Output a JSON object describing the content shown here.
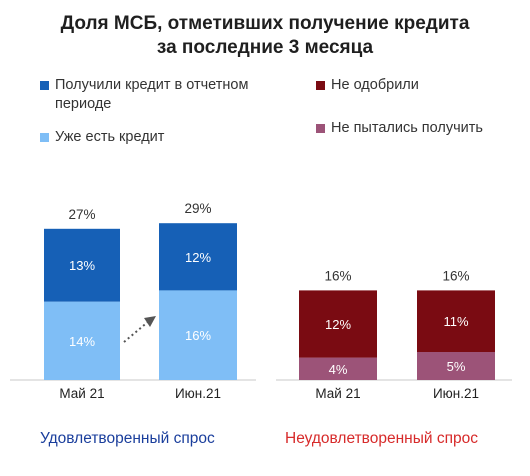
{
  "title_line1": "Доля МСБ, отметивших получение кредита",
  "title_line2": "за последние 3 месяца",
  "legend": {
    "received": {
      "label": "Получили кредит в отчетном периоде",
      "color": "#1660B6"
    },
    "has_credit": {
      "label": "Уже есть кредит",
      "color": "#7FBEF6"
    },
    "not_approved": {
      "label": "Не одобрили",
      "color": "#7A0B12"
    },
    "not_tried": {
      "label": "Не пытались получить",
      "color": "#9C5378"
    }
  },
  "sections": {
    "satisfied": {
      "label": "Удовлетворенный спрос",
      "color": "#1A3E9C"
    },
    "unsatisfied": {
      "label": "Неудовлетворенный спрос",
      "color": "#D72A2A"
    }
  },
  "chart_data": [
    {
      "type": "bar",
      "stacked": true,
      "categories": [
        "Май 21",
        "Июн.21"
      ],
      "series": [
        {
          "name": "Уже есть кредит",
          "values": [
            14,
            16
          ],
          "labels": [
            "14%",
            "16%"
          ],
          "color": "#7FBEF6"
        },
        {
          "name": "Получили кредит в отчетном периоде",
          "values": [
            13,
            12
          ],
          "labels": [
            "13%",
            "12%"
          ],
          "color": "#1660B6"
        }
      ],
      "totals": [
        "27%",
        "29%"
      ],
      "annotation": "dotted arrow from Май 21 to Июн.21"
    },
    {
      "type": "bar",
      "stacked": true,
      "categories": [
        "Май 21",
        "Июн.21"
      ],
      "series": [
        {
          "name": "Не пытались получить",
          "values": [
            4,
            5
          ],
          "labels": [
            "4%",
            "5%"
          ],
          "color": "#9C5378"
        },
        {
          "name": "Не одобрили",
          "values": [
            12,
            11
          ],
          "labels": [
            "12%",
            "11%"
          ],
          "color": "#7A0B12"
        }
      ],
      "totals": [
        "16%",
        "16%"
      ]
    }
  ]
}
